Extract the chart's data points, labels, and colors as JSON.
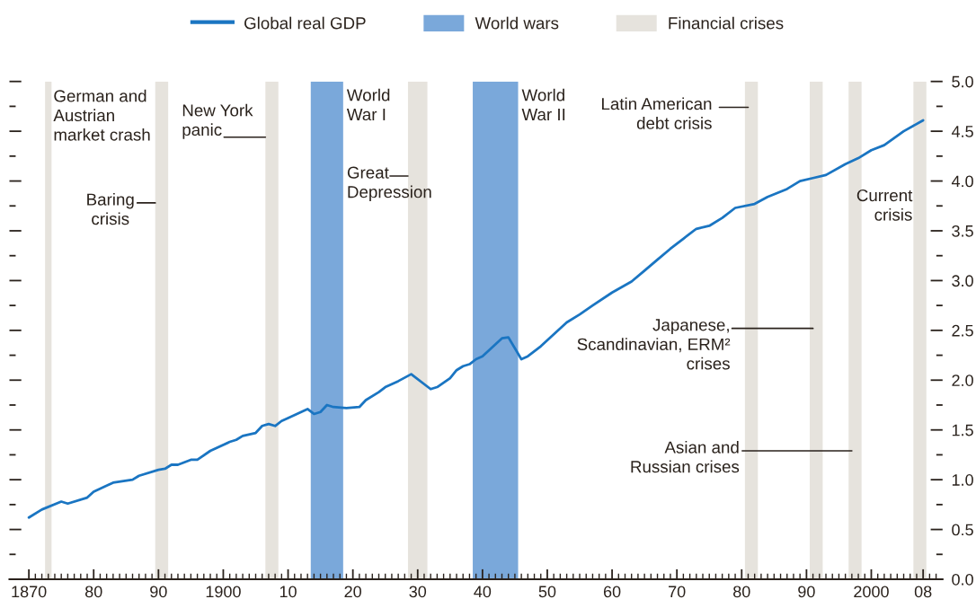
{
  "chart_data": {
    "type": "line",
    "series": [
      {
        "name": "Global real GDP",
        "color": "#1a75c2",
        "x": [
          1870,
          1872,
          1875,
          1876,
          1879,
          1880,
          1882,
          1883,
          1886,
          1887,
          1890,
          1891,
          1892,
          1893,
          1895,
          1896,
          1898,
          1901,
          1902,
          1903,
          1905,
          1906,
          1907,
          1908,
          1909,
          1910,
          1913,
          1914,
          1915,
          1916,
          1917,
          1919,
          1921,
          1922,
          1924,
          1925,
          1927,
          1929,
          1932,
          1933,
          1935,
          1936,
          1937,
          1938,
          1939,
          1940,
          1943,
          1944,
          1946,
          1947,
          1949,
          1951,
          1953,
          1955,
          1957,
          1960,
          1963,
          1965,
          1967,
          1969,
          1971,
          1973,
          1975,
          1977,
          1979,
          1982,
          1984,
          1987,
          1989,
          1991,
          1993,
          1996,
          1998,
          2000,
          2002,
          2005,
          2008
        ],
        "values": [
          0.62,
          0.7,
          0.78,
          0.76,
          0.82,
          0.88,
          0.94,
          0.97,
          1.0,
          1.04,
          1.1,
          1.11,
          1.15,
          1.15,
          1.2,
          1.2,
          1.29,
          1.38,
          1.4,
          1.44,
          1.47,
          1.54,
          1.56,
          1.54,
          1.59,
          1.62,
          1.71,
          1.66,
          1.68,
          1.75,
          1.73,
          1.72,
          1.73,
          1.8,
          1.88,
          1.93,
          1.99,
          2.06,
          1.91,
          1.93,
          2.02,
          2.1,
          2.14,
          2.16,
          2.21,
          2.24,
          2.42,
          2.43,
          2.21,
          2.24,
          2.34,
          2.46,
          2.58,
          2.66,
          2.75,
          2.88,
          2.99,
          3.1,
          3.21,
          3.32,
          3.42,
          3.52,
          3.55,
          3.63,
          3.73,
          3.77,
          3.84,
          3.92,
          4.0,
          4.03,
          4.06,
          4.17,
          4.23,
          4.31,
          4.36,
          4.5,
          4.61
        ]
      }
    ],
    "xlim": [
      1867,
      2011
    ],
    "xticks": [
      1870,
      {
        "value": 1871,
        "label": null
      },
      {
        "value": 1872,
        "label": null
      },
      {
        "value": 1873,
        "label": null
      },
      {
        "value": 1874,
        "label": null
      },
      {
        "value": 1875,
        "label": null
      },
      {
        "value": 1876,
        "label": null
      },
      {
        "value": 1877,
        "label": null
      },
      {
        "value": 1878,
        "label": null
      },
      {
        "value": 1879,
        "label": null
      },
      {
        "value": 1880,
        "label": "80"
      },
      {
        "value": 1881,
        "label": null
      },
      {
        "value": 1882,
        "label": null
      },
      {
        "value": 1883,
        "label": null
      },
      {
        "value": 1884,
        "label": null
      },
      {
        "value": 1885,
        "label": null
      },
      {
        "value": 1886,
        "label": null
      },
      {
        "value": 1887,
        "label": null
      },
      {
        "value": 1888,
        "label": null
      },
      {
        "value": 1889,
        "label": null
      },
      {
        "value": 1890,
        "label": "90"
      },
      {
        "value": 1891,
        "label": null
      },
      {
        "value": 1892,
        "label": null
      },
      {
        "value": 1893,
        "label": null
      },
      {
        "value": 1894,
        "label": null
      },
      {
        "value": 1895,
        "label": null
      },
      {
        "value": 1896,
        "label": null
      },
      {
        "value": 1897,
        "label": null
      },
      {
        "value": 1898,
        "label": null
      },
      {
        "value": 1899,
        "label": null
      },
      1900,
      {
        "value": 1901,
        "label": null
      },
      {
        "value": 1902,
        "label": null
      },
      {
        "value": 1903,
        "label": null
      },
      {
        "value": 1904,
        "label": null
      },
      {
        "value": 1905,
        "label": null
      },
      {
        "value": 1906,
        "label": null
      },
      {
        "value": 1907,
        "label": null
      },
      {
        "value": 1908,
        "label": null
      },
      {
        "value": 1909,
        "label": null
      },
      {
        "value": 1910,
        "label": "10"
      },
      {
        "value": 1911,
        "label": null
      },
      {
        "value": 1912,
        "label": null
      },
      {
        "value": 1913,
        "label": null
      },
      {
        "value": 1914,
        "label": null
      },
      {
        "value": 1915,
        "label": null
      },
      {
        "value": 1916,
        "label": null
      },
      {
        "value": 1917,
        "label": null
      },
      {
        "value": 1918,
        "label": null
      },
      {
        "value": 1919,
        "label": null
      },
      {
        "value": 1920,
        "label": "20"
      },
      {
        "value": 1921,
        "label": null
      },
      {
        "value": 1922,
        "label": null
      },
      {
        "value": 1923,
        "label": null
      },
      {
        "value": 1924,
        "label": null
      },
      {
        "value": 1925,
        "label": null
      },
      {
        "value": 1926,
        "label": null
      },
      {
        "value": 1927,
        "label": null
      },
      {
        "value": 1928,
        "label": null
      },
      {
        "value": 1929,
        "label": null
      },
      {
        "value": 1930,
        "label": "30"
      },
      {
        "value": 1931,
        "label": null
      },
      {
        "value": 1932,
        "label": null
      },
      {
        "value": 1933,
        "label": null
      },
      {
        "value": 1934,
        "label": null
      },
      {
        "value": 1935,
        "label": null
      },
      {
        "value": 1936,
        "label": null
      },
      {
        "value": 1937,
        "label": null
      },
      {
        "value": 1938,
        "label": null
      },
      {
        "value": 1939,
        "label": null
      },
      {
        "value": 1940,
        "label": "40"
      },
      {
        "value": 1941,
        "label": null
      },
      {
        "value": 1942,
        "label": null
      },
      {
        "value": 1943,
        "label": null
      },
      {
        "value": 1944,
        "label": null
      },
      {
        "value": 1945,
        "label": null
      },
      {
        "value": 1946,
        "label": null
      },
      {
        "value": 1947,
        "label": null
      },
      {
        "value": 1948,
        "label": null
      },
      {
        "value": 1949,
        "label": null
      },
      {
        "value": 1950,
        "label": "50"
      },
      {
        "value": 1951,
        "label": null
      },
      {
        "value": 1952,
        "label": null
      },
      {
        "value": 1953,
        "label": null
      },
      {
        "value": 1954,
        "label": null
      },
      {
        "value": 1955,
        "label": null
      },
      {
        "value": 1956,
        "label": null
      },
      {
        "value": 1957,
        "label": null
      },
      {
        "value": 1958,
        "label": null
      },
      {
        "value": 1959,
        "label": null
      },
      {
        "value": 1960,
        "label": "60"
      },
      {
        "value": 1961,
        "label": null
      },
      {
        "value": 1962,
        "label": null
      },
      {
        "value": 1963,
        "label": null
      },
      {
        "value": 1964,
        "label": null
      },
      {
        "value": 1965,
        "label": null
      },
      {
        "value": 1966,
        "label": null
      },
      {
        "value": 1967,
        "label": null
      },
      {
        "value": 1968,
        "label": null
      },
      {
        "value": 1969,
        "label": null
      },
      {
        "value": 1970,
        "label": "70"
      },
      {
        "value": 1971,
        "label": null
      },
      {
        "value": 1972,
        "label": null
      },
      {
        "value": 1973,
        "label": null
      },
      {
        "value": 1974,
        "label": null
      },
      {
        "value": 1975,
        "label": null
      },
      {
        "value": 1976,
        "label": null
      },
      {
        "value": 1977,
        "label": null
      },
      {
        "value": 1978,
        "label": null
      },
      {
        "value": 1979,
        "label": null
      },
      {
        "value": 1980,
        "label": "80"
      },
      {
        "value": 1981,
        "label": null
      },
      {
        "value": 1982,
        "label": null
      },
      {
        "value": 1983,
        "label": null
      },
      {
        "value": 1984,
        "label": null
      },
      {
        "value": 1985,
        "label": null
      },
      {
        "value": 1986,
        "label": null
      },
      {
        "value": 1987,
        "label": null
      },
      {
        "value": 1988,
        "label": null
      },
      {
        "value": 1989,
        "label": null
      },
      {
        "value": 1990,
        "label": "90"
      },
      {
        "value": 1991,
        "label": null
      },
      {
        "value": 1992,
        "label": null
      },
      {
        "value": 1993,
        "label": null
      },
      {
        "value": 1994,
        "label": null
      },
      {
        "value": 1995,
        "label": null
      },
      {
        "value": 1996,
        "label": null
      },
      {
        "value": 1997,
        "label": null
      },
      {
        "value": 1998,
        "label": null
      },
      {
        "value": 1999,
        "label": null
      },
      2000,
      {
        "value": 2001,
        "label": null
      },
      {
        "value": 2002,
        "label": null
      },
      {
        "value": 2003,
        "label": null
      },
      {
        "value": 2004,
        "label": null
      },
      {
        "value": 2005,
        "label": null
      },
      {
        "value": 2006,
        "label": null
      },
      {
        "value": 2007,
        "label": null
      },
      {
        "value": 2008,
        "label": "08"
      },
      {
        "value": 2009,
        "label": null
      },
      {
        "value": 2010,
        "label": null
      }
    ],
    "ylim": [
      0,
      5
    ],
    "yticks": [
      {
        "value": 0,
        "label": "0.0"
      },
      {
        "value": 0.25,
        "label": null
      },
      {
        "value": 0.5,
        "label": "0.5"
      },
      {
        "value": 0.75,
        "label": null
      },
      {
        "value": 1,
        "label": "1.0"
      },
      {
        "value": 1.25,
        "label": null
      },
      {
        "value": 1.5,
        "label": "1.5"
      },
      {
        "value": 1.75,
        "label": null
      },
      {
        "value": 2,
        "label": "2.0"
      },
      {
        "value": 2.25,
        "label": null
      },
      {
        "value": 2.5,
        "label": "2.5"
      },
      {
        "value": 2.75,
        "label": null
      },
      {
        "value": 3,
        "label": "3.0"
      },
      {
        "value": 3.25,
        "label": null
      },
      {
        "value": 3.5,
        "label": "3.5"
      },
      {
        "value": 3.75,
        "label": null
      },
      {
        "value": 4,
        "label": "4.0"
      },
      {
        "value": 4.25,
        "label": null
      },
      {
        "value": 4.5,
        "label": "4.5"
      },
      {
        "value": 4.75,
        "label": null
      },
      {
        "value": 5,
        "label": "5.0"
      }
    ],
    "legend": "top",
    "bands": [
      {
        "axis": "x",
        "from": 1913.5,
        "to": 1918.5,
        "label": "World wars",
        "color": "#7aa8da"
      },
      {
        "axis": "x",
        "from": 1938.5,
        "to": 1945.5,
        "color": "#7aa8da"
      },
      {
        "axis": "x",
        "from": 1872.5,
        "to": 1873.5,
        "label": "Financial crises",
        "color": "#e6e3dd"
      },
      {
        "axis": "x",
        "from": 1889.5,
        "to": 1891.5,
        "color": "#e6e3dd"
      },
      {
        "axis": "x",
        "from": 1906.5,
        "to": 1908.5,
        "color": "#e6e3dd"
      },
      {
        "axis": "x",
        "from": 1928.5,
        "to": 1931.5,
        "color": "#e6e3dd"
      },
      {
        "axis": "x",
        "from": 1980.5,
        "to": 1982.5,
        "color": "#e6e3dd"
      },
      {
        "axis": "x",
        "from": 1990.5,
        "to": 1992.5,
        "color": "#e6e3dd"
      },
      {
        "axis": "x",
        "from": 1996.5,
        "to": 1998.5,
        "color": "#e6e3dd"
      },
      {
        "axis": "x",
        "from": 2006.5,
        "to": 2008.5,
        "color": "#e6e3dd"
      }
    ],
    "annotations": [
      {
        "text": "German and\nAustrian\nmarket crash",
        "x": 1873.5,
        "y": 4.9
      },
      {
        "text": "Baring\ncrisis",
        "x": 1889.5,
        "y": 3.78
      },
      {
        "text": "New York\npanic",
        "x": 1906.5,
        "y": 4.44
      },
      {
        "text": "World\nWar I",
        "x": 1918.5,
        "y": 4.9
      },
      {
        "text": "Great\nDepression",
        "x": 1928.5,
        "y": 4.05
      },
      {
        "text": "World\nWar II",
        "x": 1945.5,
        "y": 4.9
      },
      {
        "text": "Latin American\ndebt crisis",
        "x": 1981,
        "y": 4.74
      },
      {
        "text": "Japanese,\nScandinavian, ERM²\ncrises",
        "x": 1991,
        "y": 2.52
      },
      {
        "text": "Asian and\nRussian crises",
        "x": 1997,
        "y": 1.29
      },
      {
        "text": "Current\ncrisis",
        "x": 2006.5,
        "y": 3.92
      }
    ]
  }
}
